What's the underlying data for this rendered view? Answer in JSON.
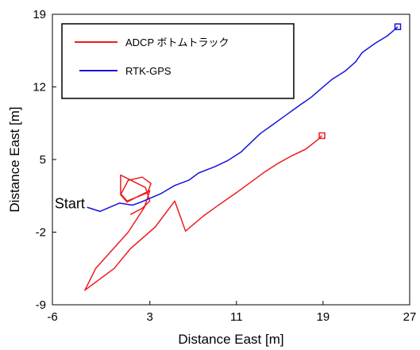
{
  "chart_data": {
    "type": "line",
    "title": "",
    "xlabel": "Distance East [m]",
    "ylabel": "Distance East [m]",
    "xlim": [
      -6,
      27
    ],
    "ylim": [
      -9,
      19
    ],
    "xticks": [
      -6,
      3,
      11,
      19,
      27
    ],
    "yticks": [
      -9,
      -2,
      5,
      12,
      19
    ],
    "grid": false,
    "legend_position": "top-left",
    "annotations": [
      {
        "text": "Start",
        "x": -3,
        "y": 0.3
      }
    ],
    "series": [
      {
        "name": "ADCP ボトムトラック",
        "color": "#ee1c1c",
        "end_marker": "square",
        "x": [
          1.2,
          2.3,
          3.0,
          2.6,
          0.3,
          0.3,
          0.9,
          2.8,
          3.1,
          2.3,
          1.0,
          0.3,
          0.9,
          2.0,
          3.0,
          2.5,
          1.0,
          -2.0,
          -3.0,
          -0.3,
          1.2,
          3.5,
          5.3,
          6.3,
          8.0,
          9.2,
          11.0,
          12.3,
          13.6,
          14.8,
          16.0,
          17.4,
          18.5,
          18.9
        ],
        "y": [
          -0.3,
          0.3,
          1.0,
          2.3,
          3.5,
          1.7,
          1.0,
          1.8,
          2.7,
          3.3,
          3.0,
          1.6,
          0.9,
          1.5,
          2.0,
          0.4,
          -2.0,
          -5.5,
          -7.6,
          -5.5,
          -3.6,
          -1.5,
          1.0,
          -1.9,
          -0.4,
          0.5,
          1.8,
          2.8,
          3.8,
          4.6,
          5.3,
          6.0,
          6.9,
          7.3
        ]
      },
      {
        "name": "RTK-GPS",
        "color": "#1414dc",
        "end_marker": "square",
        "x": [
          -2.8,
          -1.6,
          0.2,
          1.4,
          2.2,
          4.0,
          5.3,
          6.6,
          7.5,
          9.0,
          10.2,
          11.4,
          12.3,
          13.2,
          14.4,
          15.6,
          16.8,
          17.9,
          18.9,
          19.8,
          21.0,
          22.0,
          22.6,
          23.8,
          24.9,
          25.6,
          25.9
        ],
        "y": [
          0.4,
          0.0,
          0.8,
          0.6,
          0.9,
          1.7,
          2.5,
          3.0,
          3.7,
          4.3,
          4.9,
          5.7,
          6.6,
          7.5,
          8.4,
          9.3,
          10.2,
          11.0,
          11.9,
          12.7,
          13.5,
          14.4,
          15.3,
          16.2,
          16.9,
          17.5,
          17.8
        ]
      }
    ]
  }
}
